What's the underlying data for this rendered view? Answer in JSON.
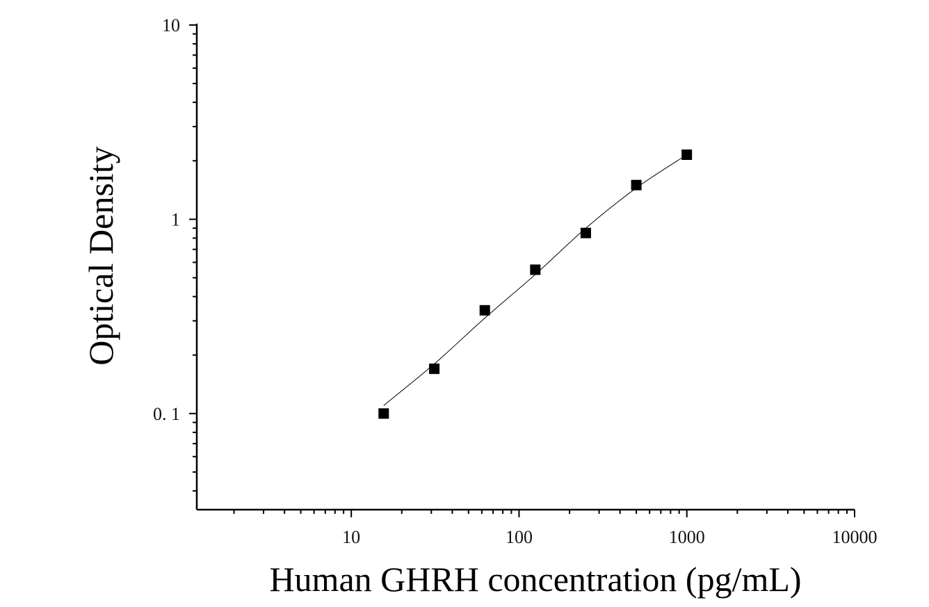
{
  "chart_data": {
    "type": "scatter",
    "title": "",
    "xlabel": "Human GHRH concentration (pg/mL)",
    "ylabel": "Optical Density",
    "x_scale": "log",
    "y_scale": "log",
    "xlim": [
      1.2,
      10000
    ],
    "ylim": [
      0.032,
      10
    ],
    "x_ticks": [
      10,
      100,
      1000,
      10000
    ],
    "x_tick_labels": [
      "10",
      "100",
      "1000",
      "10000"
    ],
    "y_ticks": [
      0.1,
      1,
      10
    ],
    "y_tick_labels": [
      "0. 1",
      "1",
      "10"
    ],
    "grid": false,
    "legend": "none",
    "marker": "square",
    "color": "#000000",
    "series": [
      {
        "points": [
          {
            "x": 15.6,
            "y": 0.1
          },
          {
            "x": 31.25,
            "y": 0.17
          },
          {
            "x": 62.5,
            "y": 0.34
          },
          {
            "x": 125,
            "y": 0.55
          },
          {
            "x": 250,
            "y": 0.85
          },
          {
            "x": 500,
            "y": 1.5
          },
          {
            "x": 1000,
            "y": 2.15
          }
        ]
      }
    ],
    "fit_curve": [
      {
        "x": 15.6,
        "y": 0.11
      },
      {
        "x": 31.25,
        "y": 0.18
      },
      {
        "x": 62.5,
        "y": 0.31
      },
      {
        "x": 125,
        "y": 0.52
      },
      {
        "x": 250,
        "y": 0.9
      },
      {
        "x": 500,
        "y": 1.45
      },
      {
        "x": 1000,
        "y": 2.15
      }
    ]
  }
}
